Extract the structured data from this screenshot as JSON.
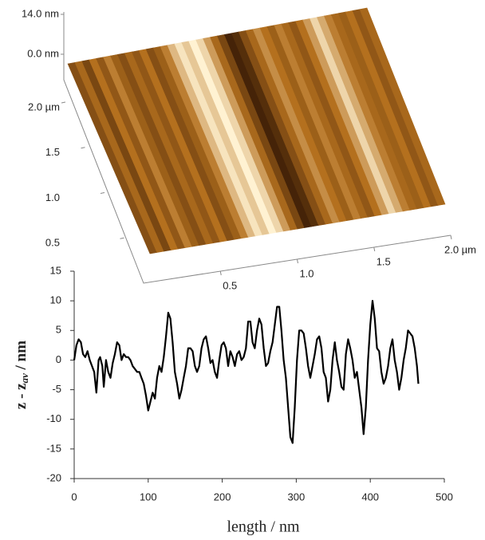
{
  "chart_data": [
    {
      "type": "surface",
      "zticks": [
        {
          "value": 14,
          "label": "14.0 nm"
        },
        {
          "value": 0,
          "label": "0.0 nm"
        }
      ],
      "zlim": [
        0,
        14
      ],
      "yticks": [
        0.5,
        {
          "value": 1,
          "label": "1.0"
        },
        1.5,
        {
          "value": 2,
          "label": "2.0 µm"
        }
      ],
      "ylim": [
        0,
        2
      ],
      "xticks": [
        0.5,
        {
          "value": 1,
          "label": "1.0"
        },
        1.5,
        {
          "value": 2,
          "label": "2.0 µm"
        }
      ],
      "xlim": [
        0,
        2
      ]
    },
    {
      "type": "line",
      "xlabel": "length / nm",
      "ylabel": [
        "z - z",
        "av",
        " / nm"
      ],
      "xlim": [
        0,
        500
      ],
      "ylim": [
        -20,
        15
      ],
      "xticks": [
        0,
        100,
        200,
        300,
        400,
        500
      ],
      "yticks": [
        -20,
        -15,
        -10,
        -5,
        0,
        5,
        10,
        15
      ],
      "series": [
        {
          "color": "#000000",
          "x": [
            0,
            3,
            6,
            9,
            12,
            15,
            18,
            21,
            24,
            27,
            30,
            33,
            35,
            38,
            40,
            43,
            46,
            49,
            52,
            55,
            58,
            61,
            64,
            67,
            70,
            73,
            76,
            79,
            82,
            85,
            88,
            91,
            94,
            97,
            100,
            103,
            106,
            109,
            112,
            115,
            118,
            121,
            124,
            127,
            130,
            133,
            136,
            139,
            142,
            145,
            148,
            151,
            154,
            157,
            160,
            163,
            166,
            169,
            172,
            175,
            178,
            181,
            184,
            187,
            190,
            193,
            196,
            199,
            202,
            205,
            208,
            211,
            214,
            217,
            220,
            223,
            226,
            229,
            232,
            235,
            238,
            241,
            244,
            247,
            250,
            253,
            256,
            259,
            262,
            265,
            268,
            271,
            274,
            277,
            280,
            283,
            286,
            289,
            292,
            295,
            298,
            301,
            304,
            307,
            310,
            313,
            316,
            319,
            322,
            325,
            328,
            331,
            334,
            337,
            340,
            343,
            346,
            349,
            352,
            355,
            358,
            361,
            364,
            367,
            370,
            373,
            376,
            379,
            382,
            385,
            388,
            391,
            394,
            397,
            400,
            403,
            406,
            409,
            412,
            415,
            418,
            421,
            424,
            427,
            430,
            433,
            436,
            439,
            442,
            445,
            448,
            451,
            454,
            457,
            460,
            463,
            465
          ],
          "values": [
            0,
            2.5,
            3.5,
            3,
            1,
            0.5,
            1.5,
            0,
            -1,
            -2,
            -5.5,
            0,
            0.5,
            -1,
            -4.5,
            0,
            -2,
            -3,
            -0.5,
            1,
            3,
            2.5,
            0,
            1,
            0.5,
            0.5,
            0,
            -1,
            -1.5,
            -2,
            -2,
            -3,
            -4,
            -6,
            -8.5,
            -7,
            -5.5,
            -6.5,
            -3,
            -1,
            -2,
            0.5,
            4,
            8,
            7,
            3,
            -2,
            -4,
            -6.5,
            -5,
            -3,
            -1,
            2,
            2,
            1.5,
            -1,
            -2,
            -1,
            2,
            3.5,
            4,
            2,
            -0.5,
            0,
            -2,
            -3,
            0,
            2.5,
            3,
            2,
            -1,
            1.5,
            0.5,
            -1,
            1,
            1.5,
            0,
            0.5,
            2,
            6.5,
            6.5,
            3,
            2,
            5,
            7,
            6,
            2,
            -1,
            -0.5,
            1.5,
            3,
            6,
            9,
            9,
            5,
            0,
            -3,
            -8,
            -13,
            -14,
            -8,
            0,
            5,
            5,
            4.5,
            2,
            -1,
            -3,
            -1,
            1,
            3.5,
            4,
            2,
            -2,
            -3,
            -7,
            -5,
            0,
            3,
            0,
            -2,
            -4.5,
            -5,
            1,
            3.5,
            2,
            0,
            -3,
            -2,
            -5,
            -8,
            -12.5,
            -8,
            0,
            6,
            10,
            7,
            2,
            1.5,
            -2,
            -4,
            -3,
            -1,
            2,
            3.5,
            0,
            -2,
            -5,
            -3,
            0,
            2,
            5,
            4.5,
            4,
            2,
            -1,
            -4
          ]
        }
      ]
    }
  ]
}
